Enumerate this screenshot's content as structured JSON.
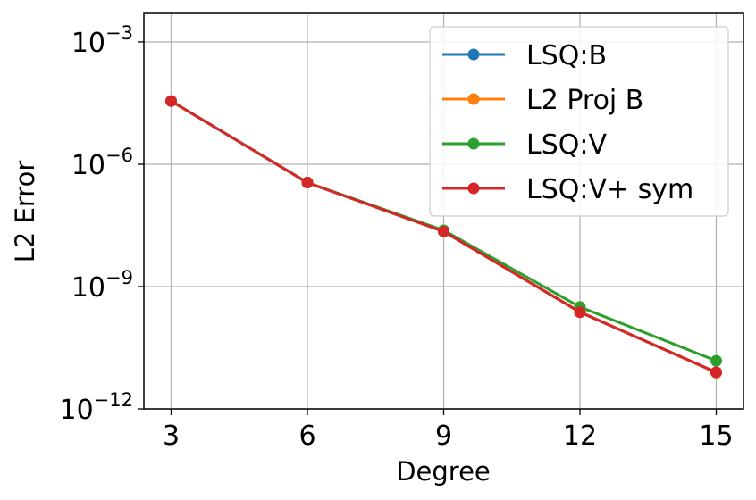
{
  "chart_data": {
    "type": "line",
    "xscale": "linear",
    "yscale": "log",
    "xlabel": "Degree",
    "ylabel": "L2 Error",
    "x": [
      3,
      6,
      9,
      12,
      15
    ],
    "xlim": [
      2.4,
      15.6
    ],
    "ylim_log10": [
      -12,
      -2.3
    ],
    "xticks": [
      3,
      6,
      9,
      12,
      15
    ],
    "xtick_labels": [
      "3",
      "6",
      "9",
      "12",
      "15"
    ],
    "yticks_log10": [
      -3,
      -6,
      -9,
      -12
    ],
    "ytick_labels": [
      {
        "base": "10",
        "exp": "−3"
      },
      {
        "base": "10",
        "exp": "−6"
      },
      {
        "base": "10",
        "exp": "−9"
      },
      {
        "base": "10",
        "exp": "−12"
      }
    ],
    "grid": true,
    "legend_position": "upper-right",
    "series": [
      {
        "name": "LSQ:B",
        "color": "#1f77b4",
        "log10_values": [
          -4.45,
          -6.45,
          -7.65,
          -9.62,
          -11.11
        ]
      },
      {
        "name": "L2 Proj B",
        "color": "#ff7f0e",
        "log10_values": [
          -4.45,
          -6.45,
          -7.65,
          -9.62,
          -11.11
        ]
      },
      {
        "name": "LSQ:V",
        "color": "#2ca02c",
        "log10_values": [
          -4.45,
          -6.45,
          -7.62,
          -9.5,
          -10.82
        ]
      },
      {
        "name": "LSQ:V+ sym",
        "color": "#d62728",
        "log10_values": [
          -4.45,
          -6.45,
          -7.65,
          -9.63,
          -11.1
        ]
      }
    ]
  }
}
